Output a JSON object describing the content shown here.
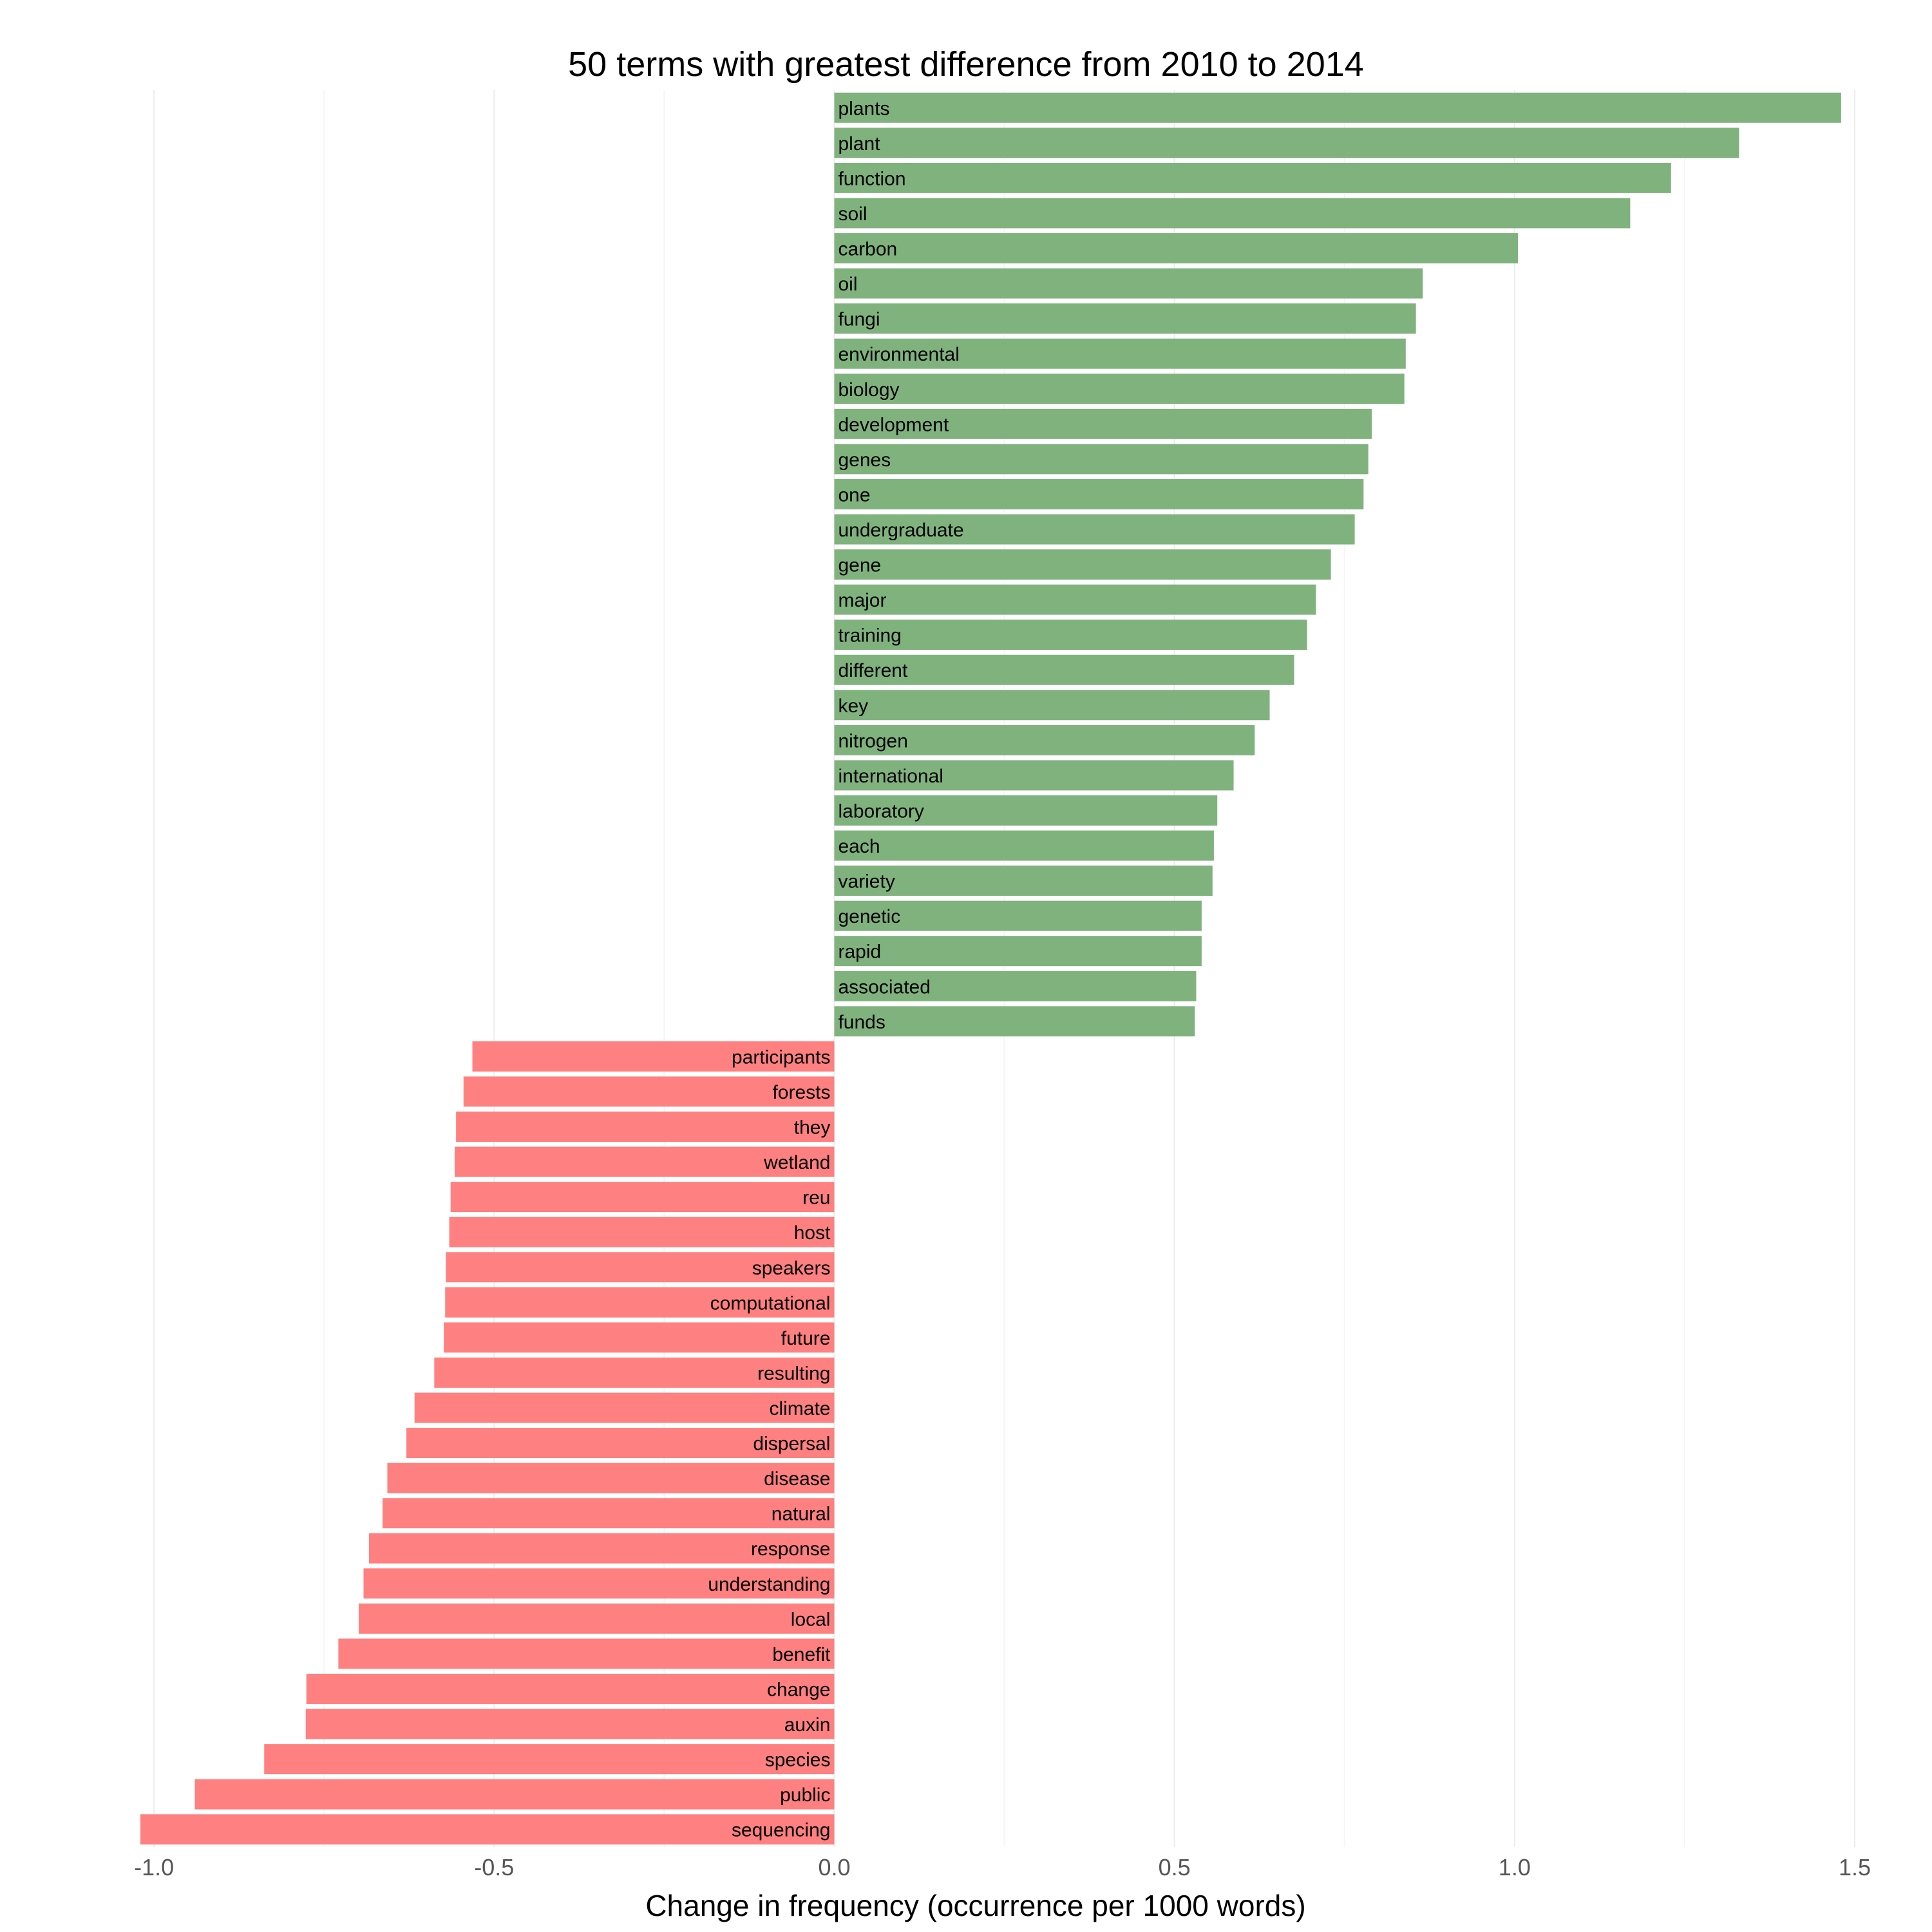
{
  "chart_data": {
    "type": "bar",
    "orientation": "horizontal",
    "title": "50 terms with  greatest difference from 2010 to 2014",
    "xlabel": "Change in frequency (occurrence per 1000 words)",
    "ylabel": "",
    "xlim": [
      -1.02,
      1.5
    ],
    "xticks": [
      -1.0,
      -0.5,
      0.0,
      0.5,
      1.0,
      1.5
    ],
    "xtick_labels": [
      "-1.0",
      "-0.5",
      "0.0",
      "0.5",
      "1.0",
      "1.5"
    ],
    "grid": true,
    "legend": "none",
    "colors": {
      "positive": "#80b27e",
      "negative": "#ff8080"
    },
    "categories": [
      "plants",
      "plant",
      "function",
      "soil",
      "carbon",
      "oil",
      "fungi",
      "environmental",
      "biology",
      "development",
      "genes",
      "one",
      "undergraduate",
      "gene",
      "major",
      "training",
      "different",
      "key",
      "nitrogen",
      "international",
      "laboratory",
      "each",
      "variety",
      "genetic",
      "rapid",
      "associated",
      "funds",
      "participants",
      "forests",
      "they",
      "wetland",
      "reu",
      "host",
      "speakers",
      "computational",
      "future",
      "resulting",
      "climate",
      "dispersal",
      "disease",
      "natural",
      "response",
      "understanding",
      "local",
      "benefit",
      "change",
      "auxin",
      "species",
      "public",
      "sequencing"
    ],
    "values": [
      1.48,
      1.33,
      1.23,
      1.17,
      1.005,
      0.865,
      0.855,
      0.84,
      0.838,
      0.79,
      0.785,
      0.778,
      0.765,
      0.73,
      0.708,
      0.695,
      0.676,
      0.64,
      0.618,
      0.587,
      0.563,
      0.558,
      0.556,
      0.54,
      0.54,
      0.532,
      0.53,
      -0.532,
      -0.545,
      -0.556,
      -0.558,
      -0.564,
      -0.566,
      -0.571,
      -0.572,
      -0.574,
      -0.588,
      -0.617,
      -0.629,
      -0.657,
      -0.664,
      -0.684,
      -0.692,
      -0.699,
      -0.729,
      -0.776,
      -0.777,
      -0.838,
      -0.94,
      -1.02
    ]
  }
}
